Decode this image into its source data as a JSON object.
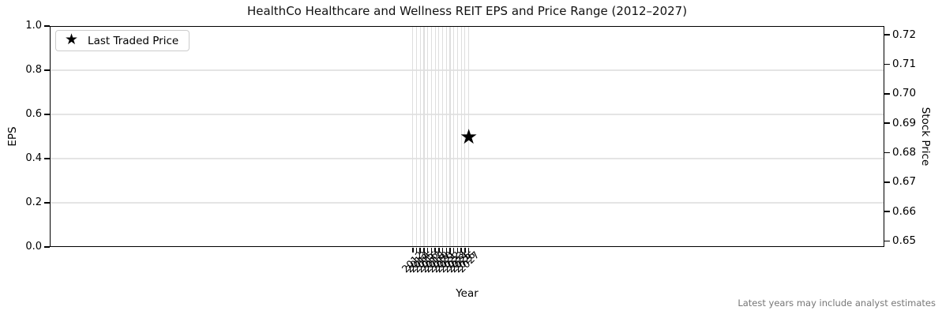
{
  "title": "HealthCo Healthcare and Wellness REIT EPS and Price Range (2012–2027)",
  "footnote": "Latest years may include analyst estimates",
  "legend": {
    "items": [
      {
        "label": "Last Traded Price",
        "marker": "star",
        "marker_glyph": "★"
      }
    ],
    "position": "upper left"
  },
  "axes": {
    "x": {
      "label": "Year",
      "tick_labels": [
        "2012",
        "2013",
        "2014",
        "2015",
        "2016",
        "2017",
        "2018",
        "2019",
        "2020",
        "2021",
        "2022",
        "2023",
        "2024",
        "2025",
        "2026",
        "2027"
      ],
      "tick_rotation_deg": 45
    },
    "y_left": {
      "label": "EPS",
      "tick_labels": [
        "0.0",
        "0.2",
        "0.4",
        "0.6",
        "0.8",
        "1.0"
      ],
      "range": [
        0.0,
        1.0
      ]
    },
    "y_right": {
      "label": "Stock Price",
      "tick_labels": [
        "0.65",
        "0.66",
        "0.67",
        "0.68",
        "0.69",
        "0.70",
        "0.71",
        "0.72"
      ],
      "range": [
        0.648,
        0.723
      ]
    }
  },
  "chart_data": {
    "type": "scatter",
    "title": "HealthCo Healthcare and Wellness REIT EPS and Price Range (2012–2027)",
    "xlabel": "Year",
    "ylabel_left": "EPS",
    "ylabel_right": "Stock Price",
    "categories": [
      "2012",
      "2013",
      "2014",
      "2015",
      "2016",
      "2017",
      "2018",
      "2019",
      "2020",
      "2021",
      "2022",
      "2023",
      "2024",
      "2025",
      "2026",
      "2027"
    ],
    "ylim_left": [
      0.0,
      1.0
    ],
    "yticks_left": [
      0.0,
      0.2,
      0.4,
      0.6,
      0.8,
      1.0
    ],
    "ylim_right": [
      0.648,
      0.723
    ],
    "yticks_right": [
      0.65,
      0.66,
      0.67,
      0.68,
      0.69,
      0.7,
      0.71,
      0.72
    ],
    "grid": true,
    "legend_position": "upper left",
    "series": [
      {
        "name": "Last Traded Price",
        "marker": "star",
        "y_axis": "right",
        "points": [
          {
            "x": "2027",
            "y": 0.685
          }
        ]
      }
    ]
  },
  "colors": {
    "background": "#ffffff",
    "spine": "#000000",
    "grid_horizontal": "#e4e4e4",
    "grid_vertical": "#dedede",
    "marker": "#000000",
    "footnote_text": "#777777",
    "legend_border": "#cccccc"
  }
}
